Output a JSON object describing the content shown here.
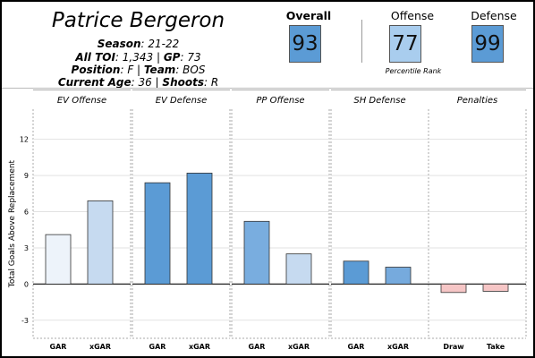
{
  "player": {
    "name": "Patrice Bergeron",
    "season_label": "Season",
    "season": ": 21-22",
    "toi_label": "All TOI",
    "toi": ": 1,343 |",
    "gp_label": "GP",
    "gp": ": 73",
    "position_label": "Position",
    "position": ": F |",
    "team_label": "Team",
    "team": ": BOS",
    "age_label": "Current Age",
    "age": ": 36 |",
    "shoots_label": "Shoots",
    "shoots": ": R"
  },
  "ratings": {
    "overall_label": "Overall",
    "overall": "93",
    "offense_label": "Offense",
    "offense": "77",
    "defense_label": "Defense",
    "defense": "99",
    "caption": "Percentile Rank"
  },
  "colors": {
    "overall": "#5b9bd5",
    "offense": "#a9cdee",
    "defense": "#5b9bd5"
  },
  "chart_data": {
    "type": "bar",
    "ylabel": "Total Goals Above Replacement",
    "ylim": [
      -4.5,
      14.5
    ],
    "yticks": [
      -3,
      0,
      3,
      6,
      9,
      12
    ],
    "grid": true,
    "panels": [
      {
        "title": "EV Offense",
        "categories": [
          "GAR",
          "xGAR"
        ],
        "values": [
          4.1,
          6.9
        ],
        "colors": [
          "#edf3fa",
          "#c6daf0"
        ]
      },
      {
        "title": "EV Defense",
        "categories": [
          "GAR",
          "xGAR"
        ],
        "values": [
          8.4,
          9.2
        ],
        "colors": [
          "#5b9bd5",
          "#5b9bd5"
        ]
      },
      {
        "title": "PP Offense",
        "categories": [
          "GAR",
          "xGAR"
        ],
        "values": [
          5.2,
          2.5
        ],
        "colors": [
          "#79addf",
          "#c6daf0"
        ]
      },
      {
        "title": "SH Defense",
        "categories": [
          "GAR",
          "xGAR"
        ],
        "values": [
          1.9,
          1.4
        ],
        "colors": [
          "#5b9bd5",
          "#76aadd"
        ]
      },
      {
        "title": "Penalties",
        "categories": [
          "Draw",
          "Take"
        ],
        "values": [
          -0.7,
          -0.6
        ],
        "colors": [
          "#f6c6c6",
          "#f6c6c6"
        ]
      }
    ]
  }
}
